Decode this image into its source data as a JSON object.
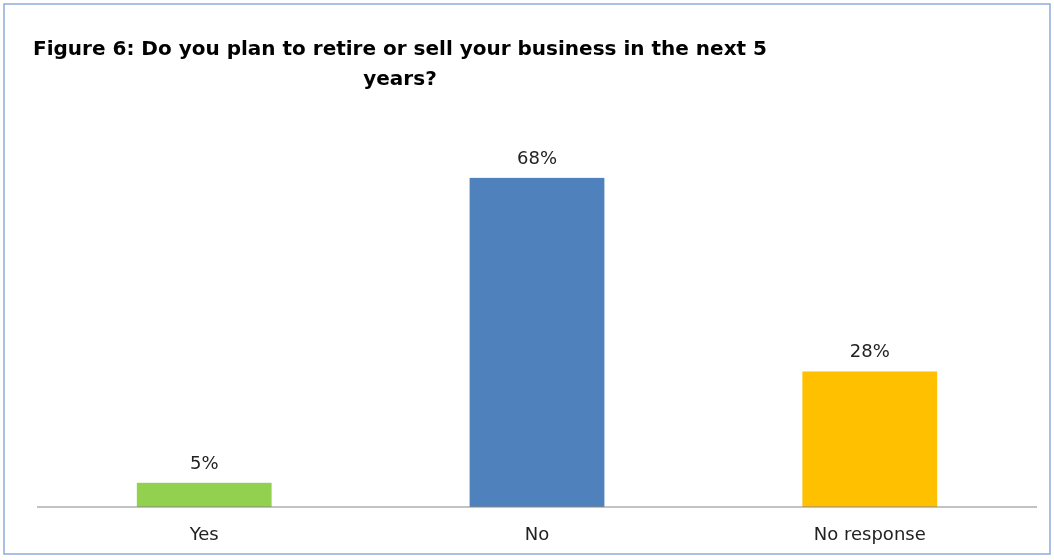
{
  "chart_data": {
    "type": "bar",
    "title": "Figure 6: Do you plan to retire or sell your business in the next 5 years?",
    "categories": [
      "Yes",
      "No",
      "No response"
    ],
    "values": [
      5,
      68,
      28
    ],
    "value_labels": [
      "5%",
      "68%",
      "28%"
    ],
    "colors": [
      "#92d050",
      "#4f81bd",
      "#ffc000"
    ]
  }
}
